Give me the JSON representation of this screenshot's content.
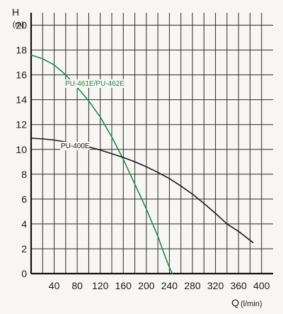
{
  "chart_data": {
    "type": "line",
    "ylabel": "H",
    "yunit": "(m)",
    "xlabel": "Q",
    "xunit": "(l/min)",
    "xlim": [
      0,
      420
    ],
    "ylim": [
      0,
      21
    ],
    "grid": true,
    "x_ticks": [
      40,
      80,
      120,
      160,
      200,
      240,
      280,
      320,
      360,
      400
    ],
    "y_ticks": [
      0,
      2,
      4,
      6,
      8,
      10,
      12,
      14,
      16,
      18,
      20
    ],
    "series": [
      {
        "name": "PU-461E/PU-462E",
        "color": "#1e8a4a",
        "x": [
          0,
          20,
          40,
          60,
          80,
          100,
          120,
          140,
          160,
          180,
          200,
          220,
          230,
          240,
          245
        ],
        "y": [
          17.6,
          17.3,
          16.8,
          16.0,
          15.0,
          13.9,
          12.6,
          11.0,
          9.2,
          7.2,
          5.2,
          3.0,
          1.7,
          0.5,
          0
        ]
      },
      {
        "name": "PU-400E",
        "color": "#1a1a1a",
        "x": [
          0,
          20,
          40,
          60,
          80,
          100,
          120,
          140,
          160,
          180,
          200,
          220,
          240,
          260,
          280,
          300,
          320,
          340,
          360,
          385
        ],
        "y": [
          10.9,
          10.85,
          10.75,
          10.6,
          10.4,
          10.2,
          9.95,
          9.65,
          9.35,
          9.0,
          8.6,
          8.15,
          7.65,
          7.05,
          6.4,
          5.65,
          4.85,
          4.0,
          3.4,
          2.5
        ]
      }
    ]
  }
}
